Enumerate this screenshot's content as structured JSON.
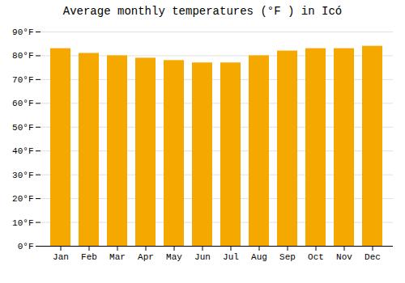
{
  "chart_data": {
    "type": "bar",
    "title": "Average monthly temperatures (°F ) in Icó",
    "categories": [
      "Jan",
      "Feb",
      "Mar",
      "Apr",
      "May",
      "Jun",
      "Jul",
      "Aug",
      "Sep",
      "Oct",
      "Nov",
      "Dec"
    ],
    "values": [
      83,
      81,
      80,
      79,
      78,
      77,
      77,
      80,
      82,
      83,
      83,
      84
    ],
    "color": "#F5A800",
    "ylim": [
      0,
      90
    ],
    "yticks": [
      {
        "value": 0,
        "label": "0°F"
      },
      {
        "value": 10,
        "label": "10°F"
      },
      {
        "value": 20,
        "label": "20°F"
      },
      {
        "value": 30,
        "label": "30°F"
      },
      {
        "value": 40,
        "label": "40°F"
      },
      {
        "value": 50,
        "label": "50°F"
      },
      {
        "value": 60,
        "label": "60°F"
      },
      {
        "value": 70,
        "label": "70°F"
      },
      {
        "value": 80,
        "label": "80°F"
      },
      {
        "value": 90,
        "label": "90°F"
      }
    ],
    "grid": true
  }
}
